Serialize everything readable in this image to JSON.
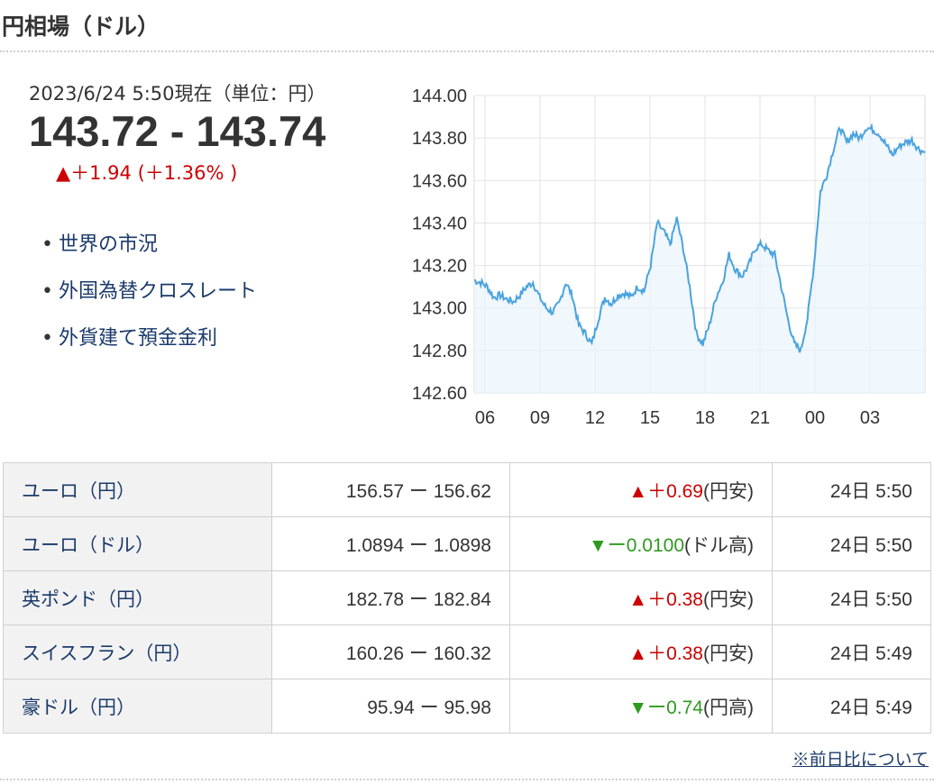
{
  "header": {
    "title": "円相場（ドル）"
  },
  "quote": {
    "timestamp": "2023/6/24 5:50現在（単位：円）",
    "rate": "143.72 - 143.74",
    "change": "▲＋1.94 (＋1.36% )"
  },
  "links": [
    "世界の市況",
    "外国為替クロスレート",
    "外貨建て預金金利"
  ],
  "chart_data": {
    "type": "area",
    "ylim": [
      142.6,
      144.0
    ],
    "yticks": [
      "144.00",
      "143.80",
      "143.60",
      "143.40",
      "143.20",
      "143.00",
      "142.80",
      "142.60"
    ],
    "xticks": [
      "06",
      "09",
      "12",
      "15",
      "18",
      "21",
      "00",
      "03"
    ],
    "grid": true,
    "color": "#4aa3df",
    "series": [
      {
        "values": [
          143.13,
          143.12,
          143.1,
          143.05,
          143.06,
          143.04,
          143.03,
          143.06,
          143.1,
          143.12,
          143.05,
          143.0,
          142.98,
          143.02,
          143.12,
          143.06,
          142.92,
          142.88,
          142.83,
          142.95,
          143.05,
          143.02,
          143.06,
          143.07,
          143.05,
          143.1,
          143.08,
          143.2,
          143.4,
          143.36,
          143.3,
          143.42,
          143.28,
          143.1,
          142.88,
          142.83,
          142.92,
          143.05,
          143.12,
          143.25,
          143.18,
          143.15,
          143.2,
          143.28,
          143.3,
          143.27,
          143.25,
          143.1,
          142.95,
          142.83,
          142.8,
          142.95,
          143.2,
          143.55,
          143.63,
          143.75,
          143.85,
          143.78,
          143.82,
          143.8,
          143.85,
          143.84,
          143.82,
          143.77,
          143.72,
          143.76,
          143.78,
          143.79,
          143.75,
          143.73
        ]
      }
    ]
  },
  "table": {
    "rows": [
      {
        "name": "ユーロ（円）",
        "rate": "156.57 ー 156.62",
        "change": "▲＋0.69",
        "direction": "up",
        "suffix": "(円安)",
        "time": "24日 5:50"
      },
      {
        "name": "ユーロ（ドル）",
        "rate": "1.0894 ー 1.0898",
        "change": "▼ー0.0100",
        "direction": "down",
        "suffix": "(ドル高)",
        "time": "24日 5:50"
      },
      {
        "name": "英ポンド（円）",
        "rate": "182.78 ー 182.84",
        "change": "▲＋0.38",
        "direction": "up",
        "suffix": "(円安)",
        "time": "24日 5:50"
      },
      {
        "name": "スイスフラン（円）",
        "rate": "160.26 ー 160.32",
        "change": "▲＋0.38",
        "direction": "up",
        "suffix": "(円安)",
        "time": "24日 5:49"
      },
      {
        "name": "豪ドル（円）",
        "rate": "95.94 ー 95.98",
        "change": "▼ー0.74",
        "direction": "down",
        "suffix": "(円高)",
        "time": "24日 5:49"
      }
    ]
  },
  "note": "※前日比について"
}
